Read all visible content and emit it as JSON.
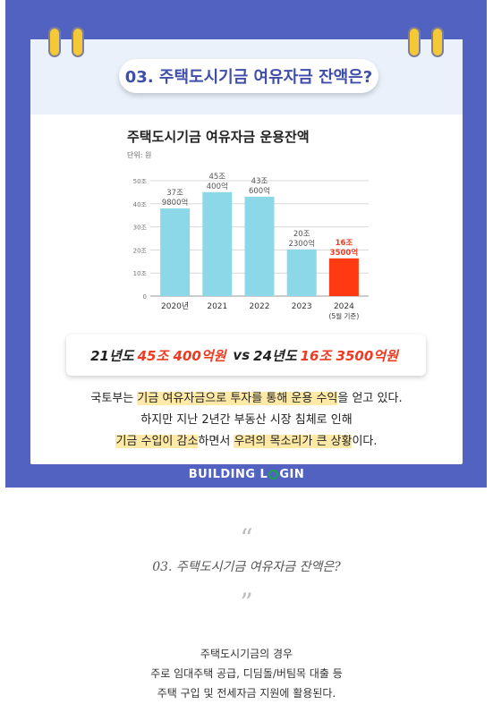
{
  "card": {
    "heading": "03. 주택도시기금 여유자금 잔액은?",
    "chart_title": "주택도시기금 여유자금 운용잔액",
    "unit_label": "단위: 원",
    "comparison": {
      "left_year": "21년도",
      "left_value": "45조 400억원",
      "vs": "vs",
      "right_year": "24년도",
      "right_value": "16조 3500억원"
    },
    "desc": {
      "l1_a": "국토부는 ",
      "l1_hl1": "기금 여유자금으로 투자를 통해 운용 수익",
      "l1_b": "을 얻고 있다.",
      "l2": "하지만 지난 2년간 부동산 시장 침체로 인해",
      "l3_hl1": "기금 수입이 감소",
      "l3_a": "하면서 ",
      "l3_hl2": "우려의 목소리가 큰 상황",
      "l3_b": "이다."
    }
  },
  "footer": {
    "brand_a": "BUILDING L",
    "brand_b": "GIN"
  },
  "quote": {
    "open": "“",
    "text": "03. 주택도시기금 여유자금 잔액은?",
    "close": "”"
  },
  "body": {
    "line1": "주택도시기금의 경우",
    "line2": "주로 임대주택 공급, 디딤돌/버팀목 대출 등",
    "line3": "주택 구입 및 전세자금 지원에 활용된다."
  },
  "colors": {
    "bar": "#8dd8e8",
    "highlight_bar": "#ff3a12",
    "accent_red": "#ee3b22",
    "frame": "#5162c0"
  },
  "chart_data": {
    "type": "bar",
    "categories": [
      "2020년",
      "2021",
      "2022",
      "2023",
      "2024"
    ],
    "category_sub": [
      "",
      "",
      "",
      "",
      "(5월 기준)"
    ],
    "values": [
      37.98,
      45.04,
      43.06,
      20.23,
      16.35
    ],
    "value_labels": [
      [
        "37조",
        "9800억"
      ],
      [
        "45조",
        "400억"
      ],
      [
        "43조",
        "600억"
      ],
      [
        "20조",
        "2300억"
      ],
      [
        "16조",
        "3500억"
      ]
    ],
    "highlight_index": 4,
    "y_ticks": [
      0,
      10,
      20,
      30,
      40,
      50
    ],
    "y_tick_labels": [
      "0",
      "10조",
      "20조",
      "30조",
      "40조",
      "50조"
    ],
    "ylim": [
      0,
      50
    ],
    "grid": true
  }
}
